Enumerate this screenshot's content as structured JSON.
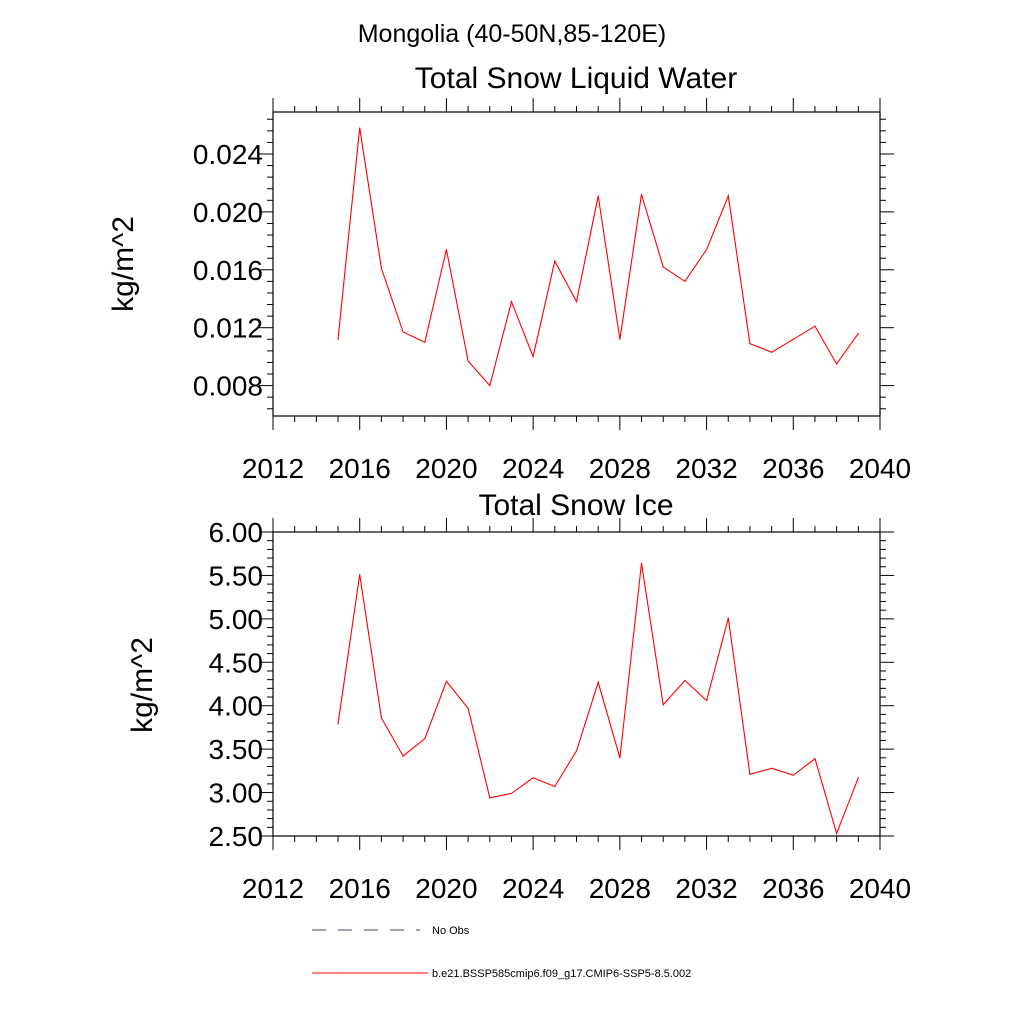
{
  "figure_title": "Mongolia (40-50N,85-120E)",
  "legend": {
    "placement": "bottom-left",
    "entries": [
      {
        "label": "No Obs",
        "color": "#3a3a8a",
        "dash": "dashed"
      },
      {
        "label": "b.e21.BSSP585cmip6.f09_g17.CMIP6-SSP5-8.5.002",
        "color": "#ff0000",
        "dash": "solid"
      }
    ]
  },
  "chart_data": [
    {
      "type": "line",
      "title": "Total Snow Liquid Water",
      "ylabel": "kg/m^2",
      "xlabel": "",
      "xlim": [
        2012,
        2040
      ],
      "ylim": [
        0.0059,
        0.0269
      ],
      "xticks": [
        2012,
        2016,
        2020,
        2024,
        2028,
        2032,
        2036,
        2040
      ],
      "xtick_labels": [
        "2012",
        "2016",
        "2020",
        "2024",
        "2028",
        "2032",
        "2036",
        "2040"
      ],
      "yticks": [
        0.008,
        0.012,
        0.016,
        0.02,
        0.024
      ],
      "ytick_labels": [
        "0.008",
        "0.012",
        "0.016",
        "0.020",
        "0.024"
      ],
      "grid": false,
      "series": [
        {
          "color": "#ff0000",
          "x": [
            2015,
            2016,
            2017,
            2018,
            2019,
            2020,
            2021,
            2022,
            2023,
            2024,
            2025,
            2026,
            2027,
            2028,
            2029,
            2030,
            2031,
            2032,
            2033,
            2034,
            2035,
            2036,
            2037,
            2038,
            2039
          ],
          "values": [
            0.0112,
            0.0258,
            0.0161,
            0.0117,
            0.011,
            0.0174,
            0.0097,
            0.008,
            0.0138,
            0.01,
            0.0166,
            0.0138,
            0.0211,
            0.0112,
            0.0212,
            0.0162,
            0.0152,
            0.0174,
            0.0211,
            0.0109,
            0.0103,
            0.0112,
            0.0121,
            0.0095,
            0.0116
          ]
        }
      ]
    },
    {
      "type": "line",
      "title": "Total Snow Ice",
      "ylabel": "kg/m^2",
      "xlabel": "",
      "xlim": [
        2012,
        2040
      ],
      "ylim": [
        2.5,
        6.0
      ],
      "xticks": [
        2012,
        2016,
        2020,
        2024,
        2028,
        2032,
        2036,
        2040
      ],
      "xtick_labels": [
        "2012",
        "2016",
        "2020",
        "2024",
        "2028",
        "2032",
        "2036",
        "2040"
      ],
      "yticks": [
        2.5,
        3.0,
        3.5,
        4.0,
        4.5,
        5.0,
        5.5,
        6.0
      ],
      "ytick_labels": [
        "2.50",
        "3.00",
        "3.50",
        "4.00",
        "4.50",
        "5.00",
        "5.50",
        "6.00"
      ],
      "grid": false,
      "series": [
        {
          "color": "#ff0000",
          "x": [
            2015,
            2016,
            2017,
            2018,
            2019,
            2020,
            2021,
            2022,
            2023,
            2024,
            2025,
            2026,
            2027,
            2028,
            2029,
            2030,
            2031,
            2032,
            2033,
            2034,
            2035,
            2036,
            2037,
            2038,
            2039
          ],
          "values": [
            3.79,
            5.51,
            3.86,
            3.42,
            3.62,
            4.28,
            3.97,
            2.94,
            2.99,
            3.17,
            3.07,
            3.48,
            4.27,
            3.4,
            5.64,
            4.01,
            4.29,
            4.06,
            5.01,
            3.21,
            3.28,
            3.2,
            3.39,
            2.53,
            3.17
          ]
        }
      ]
    }
  ]
}
